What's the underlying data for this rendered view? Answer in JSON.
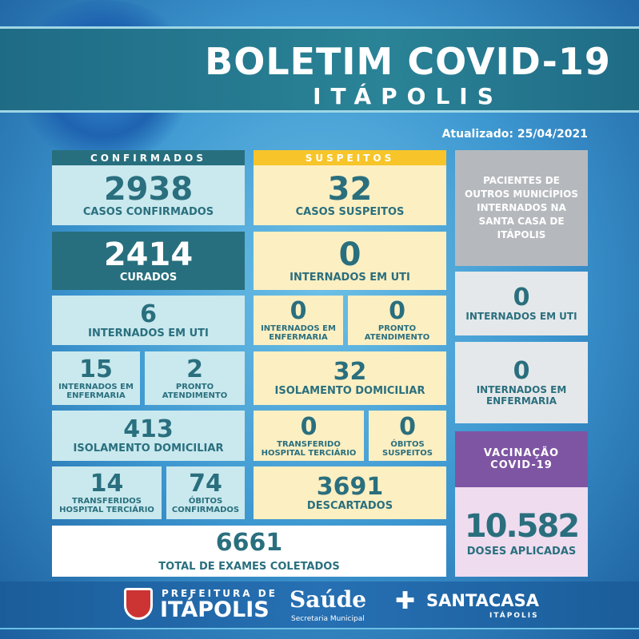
{
  "header": {
    "title": "BOLETIM COVID-19",
    "subtitle": "ITÁPOLIS",
    "updated": "Atualizado: 25/04/2021"
  },
  "confirmados": {
    "header": "CONFIRMADOS",
    "casos": {
      "value": "2938",
      "label": "CASOS CONFIRMADOS"
    },
    "curados": {
      "value": "2414",
      "label": "CURADOS"
    },
    "uti": {
      "value": "6",
      "label": "INTERNADOS EM UTI"
    },
    "enfermaria": {
      "value": "15",
      "label1": "INTERNADOS EM",
      "label2": "ENFERMARIA"
    },
    "pronto": {
      "value": "2",
      "label1": "PRONTO",
      "label2": "ATENDIMENTO"
    },
    "isolamento": {
      "value": "413",
      "label": "ISOLAMENTO DOMICILIAR"
    },
    "transferidos": {
      "value": "14",
      "label1": "TRANSFERIDOS",
      "label2": "HOSPITAL TERCIÁRIO"
    },
    "obitos": {
      "value": "74",
      "label1": "ÓBITOS",
      "label2": "CONFIRMADOS"
    }
  },
  "suspeitos": {
    "header": "SUSPEITOS",
    "casos": {
      "value": "32",
      "label": "CASOS SUSPEITOS"
    },
    "uti": {
      "value": "0",
      "label": "INTERNADOS EM UTI"
    },
    "enfermaria": {
      "value": "0",
      "label1": "INTERNADOS EM",
      "label2": "ENFERMARIA"
    },
    "pronto": {
      "value": "0",
      "label1": "PRONTO",
      "label2": "ATENDIMENTO"
    },
    "isolamento": {
      "value": "32",
      "label": "ISOLAMENTO DOMICILIAR"
    },
    "transferido": {
      "value": "0",
      "label1": "TRANSFERIDO",
      "label2": "HOSPITAL TERCIÁRIO"
    },
    "obitos": {
      "value": "0",
      "label1": "ÓBITOS",
      "label2": "SUSPEITOS"
    },
    "descartados": {
      "value": "3691",
      "label": "DESCARTADOS"
    }
  },
  "total": {
    "value": "6661",
    "label": "TOTAL DE EXAMES COLETADOS"
  },
  "outros": {
    "header": [
      "PACIENTES DE",
      "OUTROS MUNICÍPIOS",
      "INTERNADOS NA",
      "SANTA CASA DE",
      "ITÁPOLIS"
    ],
    "uti": {
      "value": "0",
      "label": "INTERNADOS EM UTI"
    },
    "enfermaria": {
      "value": "0",
      "label1": "INTERNADOS EM",
      "label2": "ENFERMARIA"
    }
  },
  "vacinacao": {
    "header1": "VACINAÇÃO",
    "header2": "COVID-19",
    "value": "10.582",
    "label": "DOSES APLICADAS"
  },
  "footer": {
    "prefeitura_top": "PREFEITURA DE",
    "prefeitura_name": "ITÁPOLIS",
    "saude": "Saúde",
    "saude_sub": "Secretaria Municipal",
    "santacasa": "SANTACASA",
    "santacasa_sub": "ITÁPOLIS"
  },
  "colors": {
    "dark_teal": "#276f7e",
    "light_blue": "#c9e9ee",
    "yellow": "#f7c52a",
    "light_yellow": "#fcefc2",
    "purple": "#7e55a3",
    "gray": "#b5b9bd"
  }
}
